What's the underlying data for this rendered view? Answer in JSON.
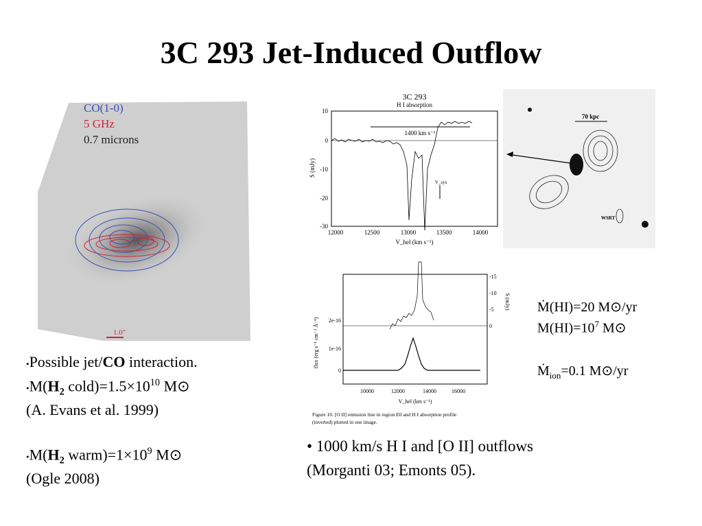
{
  "title": "3C 293 Jet-Induced Outflow",
  "left_image": {
    "labels": [
      "CO(1-0)",
      "5 GHz",
      "0.7 microns"
    ],
    "scale": "1.0\""
  },
  "left_bullets": [
    {
      "parts": [
        "•",
        "Possible jet/",
        "CO",
        " interaction."
      ]
    },
    {
      "parts": [
        "•",
        "M(",
        "H",
        "2",
        " cold)=1.5×10",
        "10",
        " M",
        "⊙"
      ]
    },
    {
      "parts": [
        "(A. Evans et al. 1999)"
      ]
    },
    {
      "parts": [
        "•",
        "M(",
        "H",
        "2",
        " warm)=1×10",
        "9",
        " M",
        "⊙"
      ]
    },
    {
      "parts": [
        "(Ogle 2008)"
      ]
    }
  ],
  "top_plot": {
    "title": "3C 293",
    "subtitle": "H I absorption",
    "width_label": "1400 km s⁻¹",
    "yticks": [
      "10",
      "0",
      "-10",
      "-20",
      "-30"
    ],
    "xticks": [
      "12000",
      "12500",
      "13000",
      "13500",
      "14000"
    ],
    "ylabel": "S (mJy)",
    "xlabel": "V_hel (km s⁻¹)",
    "marker": "V_sys"
  },
  "radio_image": {
    "scale": "70 kpc",
    "beam": "WSRT"
  },
  "bottom_plot": {
    "left_ticks": [
      "2e-16",
      "1e-16",
      "0"
    ],
    "right_ticks": [
      "-15",
      "-10",
      "-5",
      "0"
    ],
    "xticks": [
      "10000",
      "12000",
      "14000",
      "16000"
    ],
    "ylabel": "flux (erg s⁻¹ cm⁻² Å⁻¹)",
    "y2label": "S (mJy)",
    "xlabel": "V_hel (km s⁻¹)",
    "caption": [
      "Figure 10.  [O II] emission line in region E0 and H I absorption profile",
      "(inverted) plotted in one image."
    ]
  },
  "rates": [
    {
      "parts": [
        "Ṁ(HI)=20 M",
        "⊙",
        "/yr"
      ]
    },
    {
      "parts": [
        "M(HI)=10",
        "7",
        " M",
        "⊙"
      ]
    },
    {
      "parts": [
        "Ṁ",
        "ion",
        "=0.1 M",
        "⊙",
        "/yr"
      ]
    }
  ],
  "bottom_bullets": [
    "• 1000 km/s H I and [O II] outflows",
    "(Morganti 03; Emonts 05)."
  ]
}
